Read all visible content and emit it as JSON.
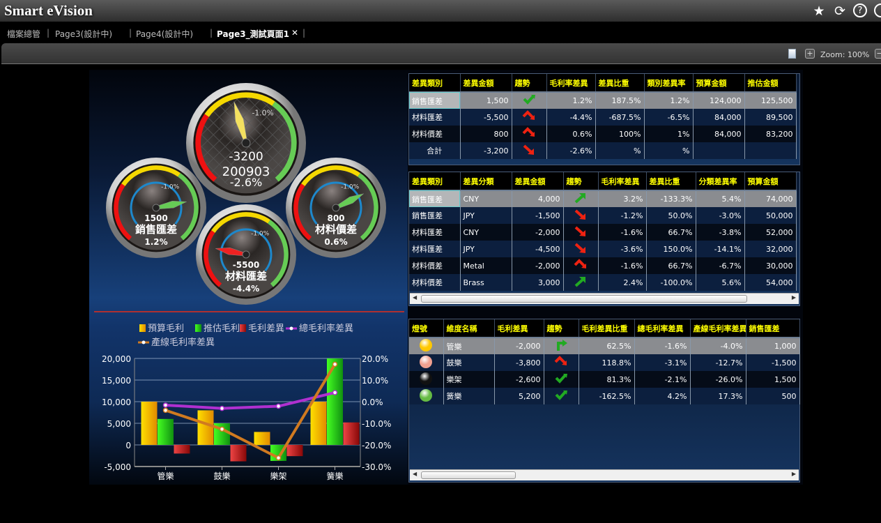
{
  "app": {
    "title": "Smart eVision"
  },
  "titlebar_icons": [
    "star-icon",
    "refresh-icon",
    "help-icon"
  ],
  "tabs": [
    {
      "label": "檔案總管"
    },
    {
      "label": "Page3(設計中)"
    },
    {
      "label": "Page4(設計中)"
    },
    {
      "label": "Page3_測試頁面1",
      "active": true,
      "close": "✕"
    }
  ],
  "toolbar": {
    "zoom_label": "Zoom: 100%",
    "zoom_in": "+",
    "zoom_out": "−"
  },
  "gauges": [
    {
      "value": "-3200",
      "label": "200903",
      "percent": "-2.6%",
      "target": "-1.0%",
      "needle_value": -3200,
      "needle_color": "#f3e060"
    },
    {
      "value": "1500",
      "label": "銷售匯差",
      "percent": "1.2%",
      "target": "-1.0%",
      "needle_value": 1500,
      "needle_color": "#66cc55"
    },
    {
      "value": "-5500",
      "label": "材料匯差",
      "percent": "-4.4%",
      "target": "-1.0%",
      "needle_value": -5500,
      "needle_color": "#ee2222"
    },
    {
      "value": "800",
      "label": "材料價差",
      "percent": "0.6%",
      "target": "-1.0%",
      "needle_value": 800,
      "needle_color": "#66cc55"
    }
  ],
  "table1": {
    "headers": [
      "差異類別",
      "差異金額",
      "趨勢",
      "毛利率差異",
      "差異比重",
      "類別差異率",
      "預算金額",
      "推估金額"
    ],
    "rows": [
      [
        "銷售匯差",
        "1,500",
        "up-check",
        "1.2%",
        "187.5%",
        "1.2%",
        "124,000",
        "125,500"
      ],
      [
        "材料匯差",
        "-5,500",
        "peak-down",
        "-4.4%",
        "-687.5%",
        "-6.5%",
        "84,000",
        "89,500"
      ],
      [
        "材料價差",
        "800",
        "peak-down",
        "0.6%",
        "100%",
        "1%",
        "84,000",
        "83,200"
      ],
      [
        "合計",
        "-3,200",
        "down",
        "-2.6%",
        "%",
        "%",
        "",
        ""
      ]
    ]
  },
  "table2": {
    "headers": [
      "差異類別",
      "差異分類",
      "差異金額",
      "趨勢",
      "毛利率差異",
      "差異比重",
      "分類差異率",
      "預算金額"
    ],
    "rows": [
      [
        "銷售匯差",
        "CNY",
        "4,000",
        "up",
        "3.2%",
        "-133.3%",
        "5.4%",
        "74,000"
      ],
      [
        "銷售匯差",
        "JPY",
        "-1,500",
        "down",
        "-1.2%",
        "50.0%",
        "-3.0%",
        "50,000"
      ],
      [
        "材料匯差",
        "CNY",
        "-2,000",
        "down",
        "-1.6%",
        "66.7%",
        "-3.8%",
        "52,000"
      ],
      [
        "材料匯差",
        "JPY",
        "-4,500",
        "down",
        "-3.6%",
        "150.0%",
        "-14.1%",
        "32,000"
      ],
      [
        "材料價差",
        "Metal",
        "-2,000",
        "peak-down",
        "-1.6%",
        "66.7%",
        "-6.7%",
        "30,000"
      ],
      [
        "材料價差",
        "Brass",
        "3,000",
        "up",
        "2.4%",
        "-100.0%",
        "5.6%",
        "54,000"
      ]
    ]
  },
  "table3": {
    "headers": [
      "燈號",
      "維度名稱",
      "毛利差異",
      "趨勢",
      "毛利差異比重",
      "總毛利率差異",
      "產線毛利率差異",
      "銷售匯差"
    ],
    "rows": [
      [
        "#ffc800",
        "管樂",
        "-2,000",
        "turn-right",
        "62.5%",
        "-1.6%",
        "-4.0%",
        "1,000"
      ],
      [
        "#f0a090",
        "鼓樂",
        "-3,800",
        "peak-down",
        "118.8%",
        "-3.1%",
        "-12.7%",
        "-1,500"
      ],
      [
        "#111111",
        "樂架",
        "-2,600",
        "up-check",
        "81.3%",
        "-2.1%",
        "-26.0%",
        "1,500"
      ],
      [
        "#66bb44",
        "簧樂",
        "5,200",
        "up-check",
        "-162.5%",
        "4.2%",
        "17.3%",
        "500"
      ]
    ]
  },
  "chart_data": {
    "type": "bar",
    "categories": [
      "管樂",
      "鼓樂",
      "樂架",
      "簧樂"
    ],
    "series": [
      {
        "name": "預算毛利",
        "kind": "bar",
        "axis": "left",
        "color": "#f0b000",
        "values": [
          10000,
          8000,
          3000,
          10000
        ]
      },
      {
        "name": "推估毛利",
        "kind": "bar",
        "axis": "left",
        "color": "#22cc11",
        "values": [
          6000,
          5000,
          -3700,
          20000
        ]
      },
      {
        "name": "毛利差異",
        "kind": "bar",
        "axis": "left",
        "color": "#cc2222",
        "values": [
          -2000,
          -3800,
          -2600,
          5200
        ]
      },
      {
        "name": "總毛利率差異",
        "kind": "line",
        "axis": "right",
        "color": "#b030d0",
        "values": [
          -1.6,
          -3.1,
          -2.1,
          4.2
        ]
      },
      {
        "name": "產線毛利率差異",
        "kind": "line",
        "axis": "right",
        "color": "#d07a20",
        "values": [
          -4.0,
          -12.7,
          -26.0,
          17.3
        ]
      }
    ],
    "left_axis": {
      "min": -5000,
      "max": 20000,
      "ticks": [
        "20,000",
        "15,000",
        "10,000",
        "5,000",
        "0",
        "-5,000"
      ]
    },
    "right_axis": {
      "min": -30,
      "max": 20,
      "ticks": [
        "20.0%",
        "10.0%",
        "0.0%",
        "-10.0%",
        "-20.0%",
        "-30.0%"
      ]
    },
    "grid": true,
    "legend": "top"
  }
}
